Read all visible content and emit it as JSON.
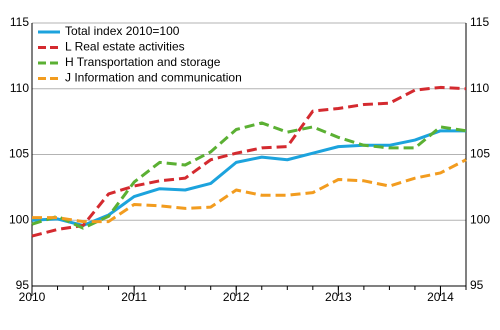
{
  "chart_data": {
    "type": "line",
    "x": [
      2010,
      2010.25,
      2010.5,
      2010.75,
      2011,
      2011.25,
      2011.5,
      2011.75,
      2012,
      2012.25,
      2012.5,
      2012.75,
      2013,
      2013.25,
      2013.5,
      2013.75,
      2014,
      2014.25
    ],
    "xlim": [
      2010,
      2014.25
    ],
    "xticks": [
      2010,
      2011,
      2012,
      2013,
      2014
    ],
    "ylim": [
      95,
      115
    ],
    "yticks": [
      95,
      100,
      105,
      110,
      115
    ],
    "grid": true,
    "legend": "top-left",
    "series": [
      {
        "name": "Total index 2010=100",
        "color": "#1ca3dd",
        "dashed": false,
        "values": [
          100.0,
          100.1,
          99.6,
          100.4,
          101.8,
          102.4,
          102.3,
          102.8,
          104.4,
          104.8,
          104.6,
          105.1,
          105.6,
          105.7,
          105.7,
          106.1,
          106.8,
          106.8
        ]
      },
      {
        "name": "L Real estate activities",
        "color": "#d42a2f",
        "dashed": true,
        "values": [
          98.8,
          99.3,
          99.6,
          102.0,
          102.6,
          103.0,
          103.2,
          104.6,
          105.1,
          105.5,
          105.6,
          108.3,
          108.5,
          108.8,
          108.9,
          109.9,
          110.1,
          110.0
        ]
      },
      {
        "name": "H Transportation and storage",
        "color": "#5bb033",
        "dashed": true,
        "values": [
          99.7,
          100.3,
          99.4,
          100.3,
          102.9,
          104.4,
          104.2,
          105.2,
          106.9,
          107.4,
          106.7,
          107.1,
          106.3,
          105.7,
          105.5,
          105.5,
          107.1,
          106.8
        ]
      },
      {
        "name": "J Information and communication",
        "color": "#f29c1f",
        "dashed": true,
        "values": [
          100.2,
          100.2,
          99.9,
          99.9,
          101.2,
          101.1,
          100.9,
          101.0,
          102.3,
          101.9,
          101.9,
          102.1,
          103.1,
          103.0,
          102.6,
          103.2,
          103.6,
          104.6
        ]
      }
    ]
  }
}
